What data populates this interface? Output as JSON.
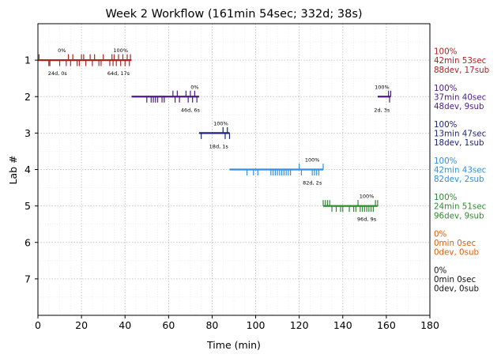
{
  "chart_data": {
    "type": "timeline",
    "title": "Week 2 Workflow (161min 54sec; 332d; 38s)",
    "xlabel": "Time (min)",
    "ylabel": "Lab #",
    "xlim": [
      0,
      180
    ],
    "ylim": [
      0,
      8
    ],
    "y_inverted": true,
    "xticks": [
      0,
      20,
      40,
      60,
      80,
      100,
      120,
      140,
      160,
      180
    ],
    "yticks": [
      1,
      2,
      3,
      4,
      5,
      6,
      7
    ],
    "grid": true,
    "labs": [
      {
        "lab": 1,
        "color": "#b22222",
        "segments": [
          [
            0,
            43
          ]
        ],
        "events": [
          [
            0.5,
            -1
          ],
          [
            5,
            1
          ],
          [
            5.5,
            1
          ],
          [
            10,
            1
          ],
          [
            13,
            1
          ],
          [
            14,
            -1
          ],
          [
            15,
            1
          ],
          [
            16,
            -1
          ],
          [
            18,
            1
          ],
          [
            19,
            1
          ],
          [
            20,
            -1
          ],
          [
            21,
            -1
          ],
          [
            22,
            1
          ],
          [
            24,
            -1
          ],
          [
            25,
            1
          ],
          [
            26,
            -1
          ],
          [
            28,
            1
          ],
          [
            29,
            1
          ],
          [
            30,
            -1
          ],
          [
            33,
            1
          ],
          [
            34,
            -1
          ],
          [
            34.5,
            1
          ],
          [
            35,
            -1
          ],
          [
            36,
            1
          ],
          [
            37,
            -1
          ],
          [
            38,
            1
          ],
          [
            39,
            -1
          ],
          [
            40,
            1
          ],
          [
            41,
            -1
          ],
          [
            42,
            1
          ],
          [
            42.5,
            -1
          ]
        ],
        "annotations": [
          {
            "text": "0%",
            "x": 11,
            "pos": "above"
          },
          {
            "text": "100%",
            "x": 38,
            "pos": "above"
          },
          {
            "text": "24d, 0s",
            "x": 9,
            "pos": "below"
          },
          {
            "text": "64d, 17s",
            "x": 37,
            "pos": "below"
          }
        ],
        "summary": [
          "100%",
          "42min 53sec",
          "88dev, 17sub"
        ]
      },
      {
        "lab": 2,
        "color": "#4b1a8c",
        "segments": [
          [
            43,
            74
          ],
          [
            156,
            162
          ]
        ],
        "events": [
          [
            50,
            1
          ],
          [
            52,
            1
          ],
          [
            53,
            1
          ],
          [
            54,
            1
          ],
          [
            55,
            1
          ],
          [
            57,
            1
          ],
          [
            58,
            1
          ],
          [
            62,
            -1
          ],
          [
            63,
            1
          ],
          [
            64,
            -1
          ],
          [
            65,
            1
          ],
          [
            68,
            -1
          ],
          [
            69,
            1
          ],
          [
            70,
            -1
          ],
          [
            71,
            1
          ],
          [
            72,
            -1
          ],
          [
            73,
            1
          ],
          [
            161,
            -1
          ],
          [
            161.5,
            1
          ],
          [
            162,
            -1
          ]
        ],
        "annotations": [
          {
            "text": "0%",
            "x": 72,
            "pos": "above"
          },
          {
            "text": "46d, 6s",
            "x": 70,
            "pos": "below"
          },
          {
            "text": "100%",
            "x": 158,
            "pos": "above"
          },
          {
            "text": "2d, 3s",
            "x": 158,
            "pos": "below"
          }
        ],
        "summary": [
          "100%",
          "37min 40sec",
          "48dev, 9sub"
        ]
      },
      {
        "lab": 3,
        "color": "#1c2379",
        "segments": [
          [
            74,
            88
          ]
        ],
        "events": [
          [
            75,
            1
          ],
          [
            85,
            -1
          ],
          [
            86,
            1
          ],
          [
            87,
            -1
          ],
          [
            88,
            1
          ]
        ],
        "annotations": [
          {
            "text": "100%",
            "x": 84,
            "pos": "above"
          },
          {
            "text": "18d, 1s",
            "x": 83,
            "pos": "below"
          }
        ],
        "summary": [
          "100%",
          "13min 47sec",
          "18dev, 1sub"
        ]
      },
      {
        "lab": 4,
        "color": "#2e8fe3",
        "segments": [
          [
            88,
            131
          ]
        ],
        "events": [
          [
            96,
            1
          ],
          [
            99,
            1
          ],
          [
            101,
            1
          ],
          [
            107,
            1
          ],
          [
            108,
            1
          ],
          [
            109,
            1
          ],
          [
            110,
            1
          ],
          [
            111,
            1
          ],
          [
            112,
            1
          ],
          [
            113,
            1
          ],
          [
            114,
            1
          ],
          [
            115,
            1
          ],
          [
            116,
            1
          ],
          [
            120,
            -1
          ],
          [
            121,
            1
          ],
          [
            126,
            1
          ],
          [
            127,
            1
          ],
          [
            128,
            1
          ],
          [
            129,
            1
          ],
          [
            131,
            -1
          ]
        ],
        "annotations": [
          {
            "text": "100%",
            "x": 126,
            "pos": "above"
          },
          {
            "text": "82d, 2s",
            "x": 126,
            "pos": "below"
          }
        ],
        "summary": [
          "100%",
          "42min 43sec",
          "82dev, 2sub"
        ]
      },
      {
        "lab": 5,
        "color": "#2e8b2e",
        "segments": [
          [
            131,
            156
          ]
        ],
        "events": [
          [
            131,
            -1
          ],
          [
            132,
            -1
          ],
          [
            133,
            -1
          ],
          [
            134,
            -1
          ],
          [
            135,
            1
          ],
          [
            137,
            1
          ],
          [
            139,
            1
          ],
          [
            140,
            1
          ],
          [
            143,
            1
          ],
          [
            145,
            1
          ],
          [
            146,
            1
          ],
          [
            147,
            -1
          ],
          [
            148,
            1
          ],
          [
            149,
            1
          ],
          [
            150,
            1
          ],
          [
            151,
            1
          ],
          [
            152,
            1
          ],
          [
            153,
            1
          ],
          [
            154,
            1
          ],
          [
            155,
            -1
          ],
          [
            156,
            -1
          ]
        ],
        "annotations": [
          {
            "text": "100%",
            "x": 151,
            "pos": "above"
          },
          {
            "text": "96d, 9s",
            "x": 151,
            "pos": "below"
          }
        ],
        "summary": [
          "100%",
          "24min 51sec",
          "96dev, 9sub"
        ]
      },
      {
        "lab": 6,
        "color": "#d95f0e",
        "segments": [],
        "events": [],
        "annotations": [],
        "summary": [
          "0%",
          "0min 0sec",
          "0dev, 0sub"
        ]
      },
      {
        "lab": 7,
        "color": "#111111",
        "segments": [],
        "events": [],
        "annotations": [],
        "summary": [
          "0%",
          "0min 0sec",
          "0dev, 0sub"
        ]
      }
    ]
  }
}
